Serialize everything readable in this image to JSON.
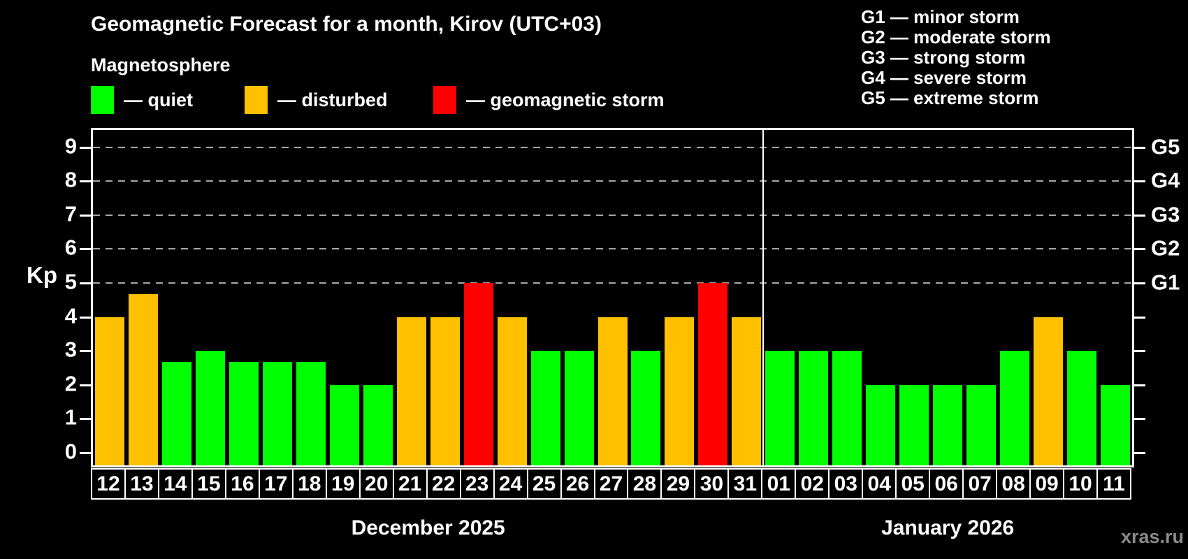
{
  "header": {
    "title": "Geomagnetic Forecast for a month, Kirov (UTC+03)",
    "subtitle": "Magnetosphere"
  },
  "legend": {
    "items": [
      {
        "key": "quiet",
        "swatch_color": "#00ff00",
        "label": "— quiet"
      },
      {
        "key": "disturbed",
        "swatch_color": "#ffc000",
        "label": "— disturbed"
      },
      {
        "key": "storm",
        "swatch_color": "#ff0000",
        "label": "— geomagnetic storm"
      }
    ]
  },
  "storm_scale": {
    "items": [
      "G1 — minor storm",
      "G2 — moderate storm",
      "G3 — strong storm",
      "G4 — severe storm",
      "G5 — extreme storm"
    ]
  },
  "watermark": "xras.ru",
  "colors": {
    "background": "#000000",
    "text": "#ffffff",
    "grid": "#a6a6a6",
    "watermark": "#8a8a8a"
  },
  "chart_data": {
    "type": "bar",
    "title": "Geomagnetic Forecast for a month, Kirov (UTC+03)",
    "ylabel": "Kp",
    "y_ticks": [
      0,
      1,
      2,
      3,
      4,
      5,
      6,
      7,
      8,
      9
    ],
    "ylim": [
      0,
      9
    ],
    "grid": "dashed horizontal lines at Kp 5,6,7,8,9",
    "legend_position": "top",
    "levels": {
      "quiet": "#00ff00",
      "disturbed": "#ffc000",
      "storm": "#ff0000"
    },
    "right_axis": [
      {
        "label": "G1",
        "kp": 5
      },
      {
        "label": "G2",
        "kp": 6
      },
      {
        "label": "G3",
        "kp": 7
      },
      {
        "label": "G4",
        "kp": 8
      },
      {
        "label": "G5",
        "kp": 9
      }
    ],
    "months": [
      {
        "label": "December 2025",
        "days": [
          {
            "day": "12",
            "kp": 4,
            "level": "disturbed"
          },
          {
            "day": "13",
            "kp": 4.67,
            "level": "disturbed"
          },
          {
            "day": "14",
            "kp": 2.67,
            "level": "quiet"
          },
          {
            "day": "15",
            "kp": 3,
            "level": "quiet"
          },
          {
            "day": "16",
            "kp": 2.67,
            "level": "quiet"
          },
          {
            "day": "17",
            "kp": 2.67,
            "level": "quiet"
          },
          {
            "day": "18",
            "kp": 2.67,
            "level": "quiet"
          },
          {
            "day": "19",
            "kp": 2,
            "level": "quiet"
          },
          {
            "day": "20",
            "kp": 2,
            "level": "quiet"
          },
          {
            "day": "21",
            "kp": 4,
            "level": "disturbed"
          },
          {
            "day": "22",
            "kp": 4,
            "level": "disturbed"
          },
          {
            "day": "23",
            "kp": 5,
            "level": "storm"
          },
          {
            "day": "24",
            "kp": 4,
            "level": "disturbed"
          },
          {
            "day": "25",
            "kp": 3,
            "level": "quiet"
          },
          {
            "day": "26",
            "kp": 3,
            "level": "quiet"
          },
          {
            "day": "27",
            "kp": 4,
            "level": "disturbed"
          },
          {
            "day": "28",
            "kp": 3,
            "level": "quiet"
          },
          {
            "day": "29",
            "kp": 4,
            "level": "disturbed"
          },
          {
            "day": "30",
            "kp": 5,
            "level": "storm"
          },
          {
            "day": "31",
            "kp": 4,
            "level": "disturbed"
          }
        ]
      },
      {
        "label": "January 2026",
        "days": [
          {
            "day": "01",
            "kp": 3,
            "level": "quiet"
          },
          {
            "day": "02",
            "kp": 3,
            "level": "quiet"
          },
          {
            "day": "03",
            "kp": 3,
            "level": "quiet"
          },
          {
            "day": "04",
            "kp": 2,
            "level": "quiet"
          },
          {
            "day": "05",
            "kp": 2,
            "level": "quiet"
          },
          {
            "day": "06",
            "kp": 2,
            "level": "quiet"
          },
          {
            "day": "07",
            "kp": 2,
            "level": "quiet"
          },
          {
            "day": "08",
            "kp": 3,
            "level": "quiet"
          },
          {
            "day": "09",
            "kp": 4,
            "level": "disturbed"
          },
          {
            "day": "10",
            "kp": 3,
            "level": "quiet"
          },
          {
            "day": "11",
            "kp": 2,
            "level": "quiet"
          }
        ]
      }
    ]
  }
}
